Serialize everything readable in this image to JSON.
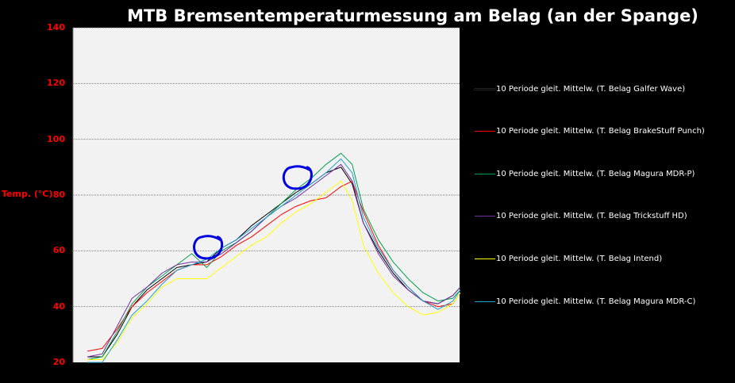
{
  "chart_data": {
    "type": "line",
    "title": "MTB Bremsentemperaturmessung am Belag  (an der Spange)",
    "ylabel": "Temp. (°C)",
    "xlabel": "",
    "ylim": [
      20,
      140
    ],
    "yticks": [
      "20",
      "40",
      "60",
      "80",
      "100",
      "120",
      "140"
    ],
    "grid": true,
    "legend_position": "right",
    "x": [
      0,
      4,
      8,
      12,
      16,
      20,
      24,
      28,
      32,
      36,
      40,
      44,
      48,
      52,
      56,
      60,
      64,
      68,
      71,
      74,
      78,
      82,
      86,
      90,
      94,
      98,
      100
    ],
    "series": [
      {
        "name": "10 Periode gleit. Mittelw. (T. Belag Galfer Wave)",
        "color": "#000000",
        "values": [
          22,
          22,
          30,
          40,
          46,
          50,
          54,
          55,
          56,
          61,
          64,
          69,
          73,
          77,
          81,
          84,
          88,
          90,
          84,
          70,
          60,
          52,
          46,
          42,
          41,
          44,
          47
        ]
      },
      {
        "name": "10 Periode gleit. Mittelw. (T. Belag BrakeStuff Punch)",
        "color": "#ff0000",
        "values": [
          24,
          25,
          32,
          40,
          45,
          49,
          53,
          55,
          55,
          58,
          62,
          65,
          69,
          73,
          76,
          78,
          79,
          83,
          85,
          74,
          62,
          53,
          47,
          42,
          40,
          41,
          45
        ]
      },
      {
        "name": "10 Periode gleit. Mittelw. (T. Belag Magura MDR-P)",
        "color": "#00a050",
        "values": [
          21,
          22,
          31,
          41,
          47,
          51,
          55,
          59,
          54,
          60,
          63,
          67,
          72,
          77,
          82,
          86,
          91,
          95,
          91,
          75,
          64,
          56,
          50,
          45,
          42,
          43,
          46
        ]
      },
      {
        "name": "10 Periode gleit. Mittelw. (T. Belag Trickstuff HD)",
        "color": "#7030a0",
        "values": [
          22,
          23,
          33,
          43,
          47,
          52,
          55,
          56,
          56,
          59,
          63,
          67,
          72,
          76,
          79,
          83,
          87,
          91,
          85,
          70,
          59,
          51,
          46,
          42,
          41,
          44,
          47
        ]
      },
      {
        "name": "10 Periode gleit. Mittelw. (T. Belag Intend)",
        "color": "#ffff00",
        "values": [
          21,
          21,
          27,
          36,
          41,
          47,
          50,
          50,
          50,
          54,
          58,
          62,
          65,
          70,
          74,
          77,
          81,
          85,
          78,
          62,
          52,
          45,
          40,
          37,
          38,
          41,
          45
        ]
      },
      {
        "name": "10 Periode gleit. Mittelw. (T. Belag Magura MDR-C)",
        "color": "#1fa0d0",
        "values": [
          20,
          20,
          28,
          37,
          42,
          48,
          53,
          55,
          57,
          61,
          64,
          68,
          72,
          76,
          80,
          84,
          88,
          93,
          88,
          72,
          61,
          53,
          47,
          42,
          39,
          42,
          46
        ]
      }
    ],
    "annotations": [
      {
        "type": "hand-drawn-circle",
        "color": "#0000e0",
        "x": 32,
        "y": 61
      },
      {
        "type": "hand-drawn-circle",
        "color": "#0000e0",
        "x": 56,
        "y": 86
      }
    ]
  }
}
